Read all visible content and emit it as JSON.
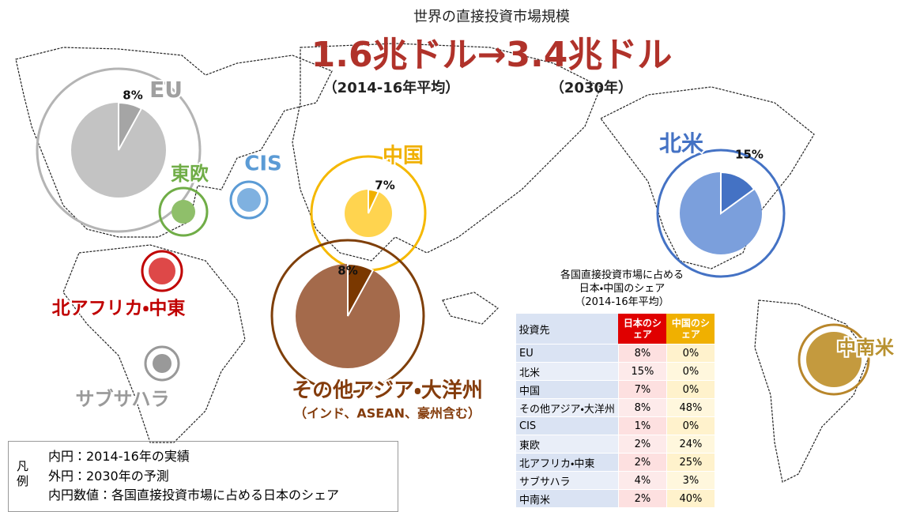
{
  "header": {
    "subtitle": "世界の直接投資市場規模",
    "from": "1.6兆ドル",
    "arrow": "→",
    "to": "3.4兆ドル",
    "from_note": "（2014-16年平均）",
    "to_note": "（2030年）"
  },
  "regions": [
    {
      "name": "EU",
      "share": 8,
      "share_label": "8%",
      "outer_color": "#b4b4b4",
      "inner_color": "#c3c3c3",
      "wedge_color": "#a5a5a5",
      "label_color": "#a0a0a0"
    },
    {
      "name": "東欧",
      "outer_color": "#70ad47",
      "inner_color": "#8fbf6a",
      "label_color": "#70ad47"
    },
    {
      "name": "CIS",
      "outer_color": "#5b9bd5",
      "inner_color": "#7fb1e0",
      "label_color": "#5b9bd5"
    },
    {
      "name": "中国",
      "share": 7,
      "share_label": "7%",
      "outer_color": "#f5b800",
      "inner_color": "#ffd44f",
      "wedge_color": "#f0b000",
      "label_color": "#f0b000"
    },
    {
      "name": "北米",
      "share": 15,
      "share_label": "15%",
      "outer_color": "#4472c4",
      "inner_color": "#7b9fdc",
      "wedge_color": "#4472c4",
      "label_color": "#4472c4"
    },
    {
      "name": "その他アジア・大洋州",
      "note": "（インド、ASEAN、豪州含む）",
      "share": 8,
      "share_label": "8%",
      "outer_color": "#7f3f0a",
      "inner_color": "#a46a4b",
      "wedge_color": "#7a3800",
      "label_color": "#843c0c"
    },
    {
      "name": "北アフリカ・中東",
      "outer_color": "#c00000",
      "inner_color": "#de4848",
      "label_color": "#c00000"
    },
    {
      "name": "サブサハラ",
      "outer_color": "#999999",
      "inner_color": "#999999",
      "label_color": "#9a9a9a"
    },
    {
      "name": "中南米",
      "outer_color": "#b8862b",
      "inner_color": "#c49a3e",
      "label_color": "#b8912f"
    }
  ],
  "table": {
    "title": [
      "各国直接投資市場に占める",
      "日本・中国のシェア",
      "（2014-16年平均）"
    ],
    "header": [
      "投資先",
      "日本のシェア",
      "中国のシェア"
    ],
    "rows": [
      [
        "EU",
        "8%",
        "0%"
      ],
      [
        "北米",
        "15%",
        "0%"
      ],
      [
        "中国",
        "7%",
        "0%"
      ],
      [
        "その他アジア・大洋州",
        "8%",
        "48%"
      ],
      [
        "CIS",
        "1%",
        "0%"
      ],
      [
        "東欧",
        "2%",
        "24%"
      ],
      [
        "北アフリカ・中東",
        "2%",
        "25%"
      ],
      [
        "サブサハラ",
        "4%",
        "3%"
      ],
      [
        "中南米",
        "2%",
        "40%"
      ]
    ]
  },
  "legend": {
    "title": "凡例",
    "lines": [
      "内円：2014-16年の実績",
      "外円：2030年の予測",
      "内円数値：各国直接投資市場に占める日本のシェア"
    ]
  }
}
